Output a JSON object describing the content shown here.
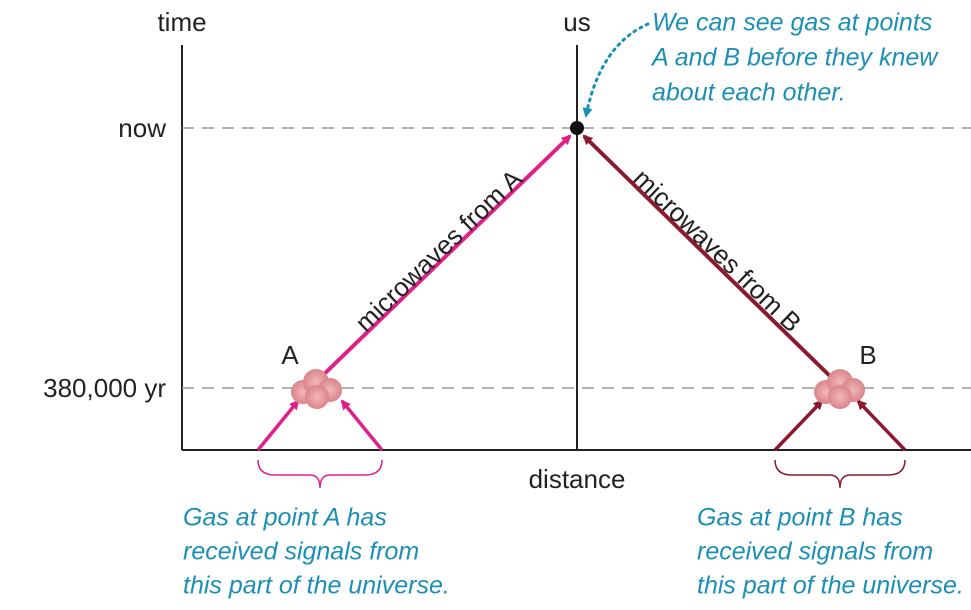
{
  "axes": {
    "vertical": "time",
    "horizontal": "distance",
    "observer": "us"
  },
  "time_marks": {
    "now": "now",
    "recombination": "380,000 yr"
  },
  "points": {
    "a": "A",
    "b": "B"
  },
  "rays": {
    "a": "microwaves from A",
    "b": "microwaves from B"
  },
  "annotation": {
    "lines": [
      "We can see gas at points",
      "A and B before they knew",
      "about each other."
    ]
  },
  "captions": {
    "a": {
      "lines": [
        "Gas at point A has",
        "received signals from",
        "this part of the universe."
      ]
    },
    "b": {
      "lines": [
        "Gas at point B has",
        "received signals from",
        "this part of the universe."
      ]
    }
  }
}
